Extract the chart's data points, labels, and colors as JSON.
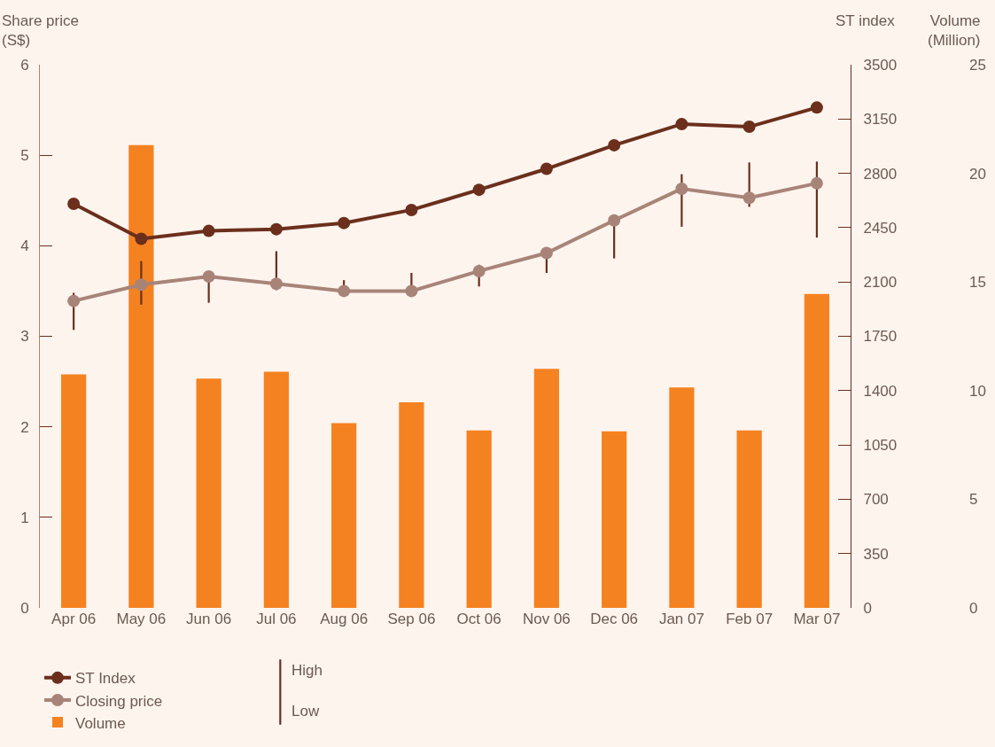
{
  "chart_data": {
    "type": "line",
    "categories": [
      "Apr 06",
      "May 06",
      "Jun 06",
      "Jul 06",
      "Aug 06",
      "Sep 06",
      "Oct 06",
      "Nov 06",
      "Dec 06",
      "Jan 07",
      "Feb 07",
      "Mar 07"
    ],
    "series": [
      {
        "name": "Volume",
        "type": "bar",
        "axis": "y3",
        "color": "#f58220",
        "values": [
          10.75,
          21.3,
          10.55,
          10.87,
          8.5,
          9.46,
          8.17,
          11.0,
          8.13,
          10.14,
          8.17,
          14.45
        ]
      },
      {
        "name": "Closing price",
        "color": "#a88478",
        "values": [
          3.39,
          3.57,
          3.66,
          3.58,
          3.5,
          3.5,
          3.72,
          3.92,
          4.28,
          4.63,
          4.53,
          4.69
        ],
        "errors": [
          [
            3.07,
            3.48
          ],
          [
            3.35,
            3.83
          ],
          [
            3.37,
            3.66
          ],
          [
            3.51,
            3.94
          ],
          [
            3.48,
            3.62
          ],
          [
            3.47,
            3.7
          ],
          [
            3.55,
            3.79
          ],
          [
            3.7,
            3.97
          ],
          [
            3.86,
            4.32
          ],
          [
            4.21,
            4.79
          ],
          [
            4.43,
            4.92
          ],
          [
            4.09,
            4.93
          ]
        ]
      },
      {
        "name": "ST Index",
        "axis": "y2",
        "color": "#6b2f1c",
        "values": [
          2604,
          2378,
          2429,
          2440,
          2480,
          2564,
          2694,
          2829,
          2981,
          3117,
          3100,
          3224
        ]
      }
    ],
    "ylabel": "Share price\n(S$)",
    "y2label": "ST index",
    "y3label": "Volume\n(Million)",
    "ylim": [
      0,
      6
    ],
    "yticks": [
      0,
      1,
      2,
      3,
      4,
      5,
      6
    ],
    "y2lim": [
      0,
      3500
    ],
    "y2ticks": [
      0,
      350,
      700,
      1050,
      1400,
      1750,
      2100,
      2450,
      2800,
      3150,
      3500
    ],
    "y3lim": [
      0,
      25
    ],
    "y3ticks": [
      0,
      5,
      10,
      15,
      20,
      25
    ],
    "annotations": [
      "High",
      "Low"
    ],
    "marker": "circle",
    "line_style": "solid",
    "grid": false,
    "legend": "bottom left"
  }
}
